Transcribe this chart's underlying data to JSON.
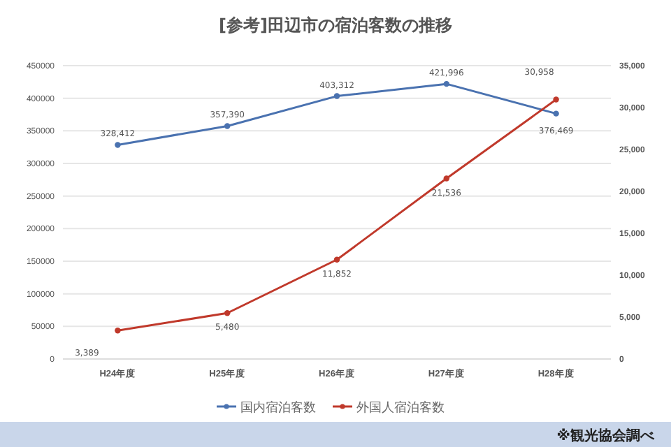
{
  "chart_data": {
    "type": "line",
    "title": "[参考]田辺市の宿泊客数の推移",
    "categories": [
      "H24年度",
      "H25年度",
      "H26年度",
      "H27年度",
      "H28年度"
    ],
    "series": [
      {
        "name": "国内宿泊客数",
        "color": "#4a72b0",
        "values": [
          328412,
          357390,
          403312,
          421996,
          376469
        ],
        "value_labels": [
          "328,412",
          "357,390",
          "403,312",
          "421,996",
          "376,469"
        ]
      },
      {
        "name": "外国人宿泊客数",
        "color": "#c0392b",
        "axis": "y2",
        "values": [
          3389,
          5480,
          11852,
          21536,
          30958
        ],
        "value_labels": [
          "3,389",
          "5,480",
          "11,852",
          "21,536",
          "30,958"
        ]
      }
    ],
    "ylim": [
      0,
      450000
    ],
    "yticks": [
      0,
      50000,
      100000,
      150000,
      200000,
      250000,
      300000,
      350000,
      400000,
      450000
    ],
    "y2lim": [
      0,
      35000
    ],
    "y2ticks": [
      0,
      {
        "value": 5000,
        "label": "5,000"
      },
      {
        "value": 10000,
        "label": "10,000"
      },
      {
        "value": 15000,
        "label": "15,000"
      },
      {
        "value": 20000,
        "label": "20,000"
      },
      {
        "value": 25000,
        "label": "25,000"
      },
      {
        "value": 30000,
        "label": "30,000"
      },
      {
        "value": 35000,
        "label": "35,000"
      }
    ],
    "grid": "y",
    "legend": "bottom",
    "marker": "circle",
    "line_style": "solid",
    "annotations": [
      "※観光協会調べ"
    ]
  }
}
